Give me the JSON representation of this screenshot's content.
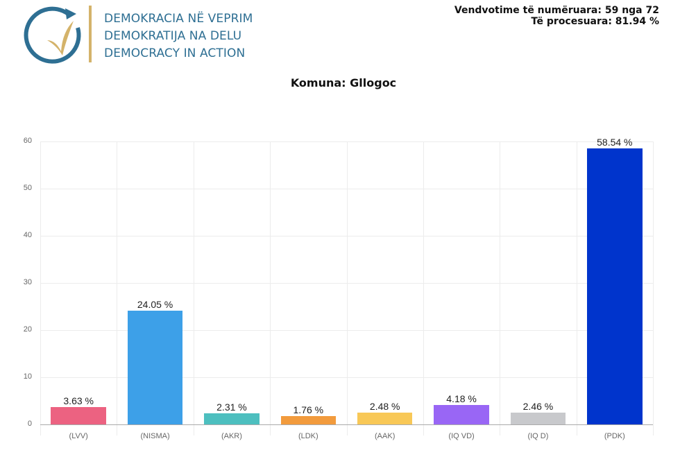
{
  "header": {
    "logo": {
      "icon": "circular-arrow-checkmark-icon",
      "lines": [
        "DEMOKRACIA NË VEPRIM",
        "DEMOKRATIJA NA DELU",
        "DEMOCRACY IN ACTION"
      ],
      "colors": {
        "text": "#2e6f93",
        "arrow": "#2e6f93",
        "check": "#d4b36a",
        "divider": "#d4b36a"
      }
    },
    "status": {
      "counted": "Vendvotime të numëruara: 59 nga 72",
      "processed": "Të procesuara: 81.94 %"
    }
  },
  "chart_data": {
    "type": "bar",
    "title": "Komuna: Gllogoc",
    "xlabel": "",
    "ylabel": "",
    "ylim": [
      0,
      60
    ],
    "yticks": [
      0,
      10,
      20,
      30,
      40,
      50,
      60
    ],
    "grid": true,
    "legend": "none",
    "categories": [
      "(LVV)",
      "(NISMA)",
      "(AKR)",
      "(LDK)",
      "(AAK)",
      "(IQ VD)",
      "(IQ D)",
      "(PDK)"
    ],
    "values": [
      3.63,
      24.05,
      2.31,
      1.76,
      2.48,
      4.18,
      2.46,
      58.54
    ],
    "labels": [
      "3.63 %",
      "24.05 %",
      "2.31 %",
      "1.76 %",
      "2.48 %",
      "4.18 %",
      "2.46 %",
      "58.54 %"
    ],
    "colors": [
      "#ec6281",
      "#3da0e8",
      "#4dbfbf",
      "#f29b3d",
      "#f8c857",
      "#9966f5",
      "#c8c9cc",
      "#0034cc"
    ]
  }
}
